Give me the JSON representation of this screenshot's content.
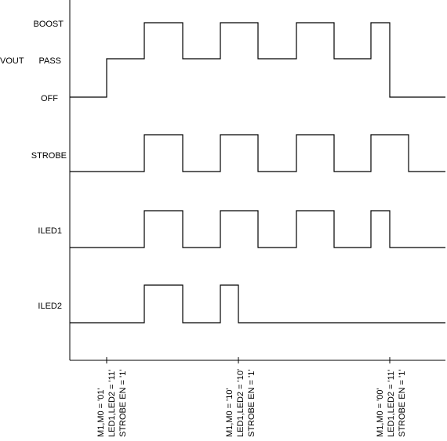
{
  "diagram": {
    "vout": {
      "name": "VOUT",
      "levels": [
        "BOOST",
        "PASS",
        "OFF"
      ]
    },
    "signals": [
      {
        "id": "vout",
        "label": "VOUT"
      },
      {
        "id": "strobe",
        "label": "STROBE"
      },
      {
        "id": "iled1",
        "label": "ILED1"
      },
      {
        "id": "iled2",
        "label": "ILED2"
      }
    ],
    "annotations": [
      {
        "lines": [
          "M1,M0 = '01'",
          "LED1,LED2 = '11'",
          "STROBE EN = '1'"
        ]
      },
      {
        "lines": [
          "M1,M0 = '10'",
          "LED1,LED2 = '10'",
          "STROBE EN = '1'"
        ]
      },
      {
        "lines": [
          "M1,M0 = '00'",
          "LED1,LED2 = '11'",
          "STROBE EN = '1'"
        ]
      }
    ]
  }
}
